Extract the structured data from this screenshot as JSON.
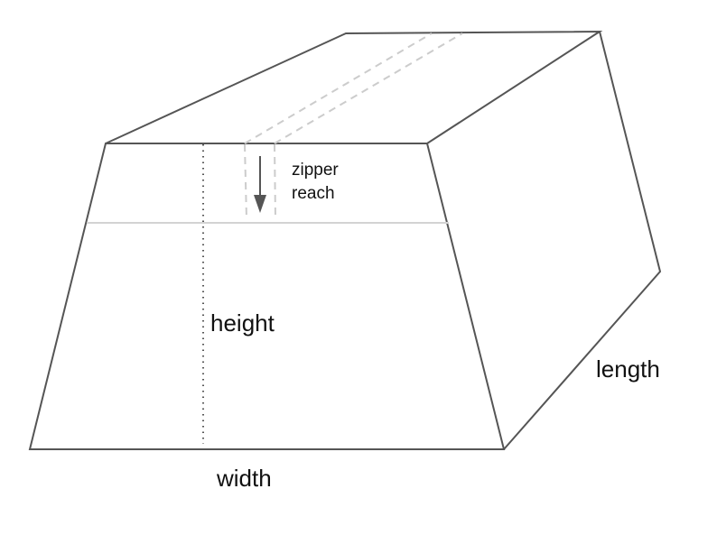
{
  "diagram": {
    "labels": {
      "zipper_reach_line1": "zipper",
      "zipper_reach_line2": "reach",
      "height": "height",
      "width": "width",
      "length": "length"
    }
  },
  "colors": {
    "outline": "#555555",
    "dashed": "#cccccc",
    "guide": "#d3d3d3",
    "arrow": "#555555",
    "text": "#111111"
  }
}
